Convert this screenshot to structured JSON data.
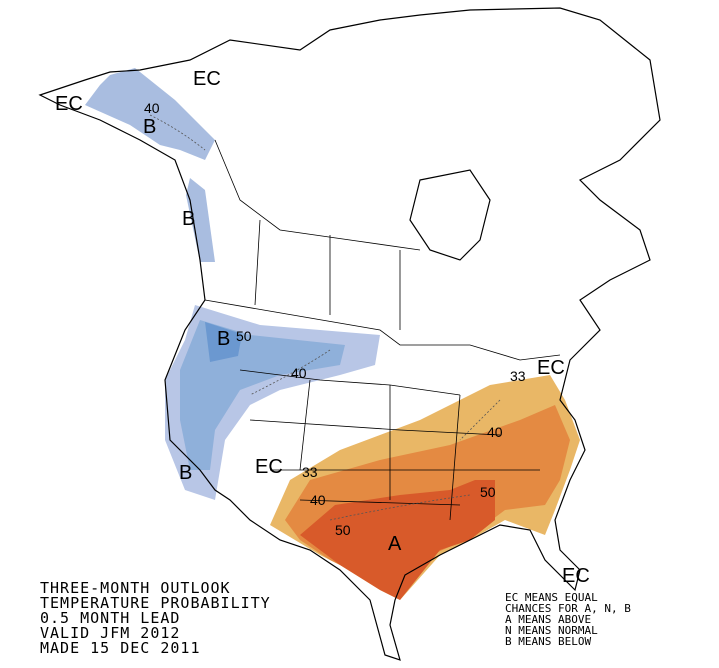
{
  "map_labels": [
    "EC",
    "EC",
    "40",
    "B",
    "B",
    "B",
    "50",
    "40",
    "EC",
    "33",
    "40",
    "EC",
    "33",
    "B",
    "40",
    "50",
    "50",
    "A",
    "EC"
  ],
  "caption_lines": [
    "THREE-MONTH OUTLOOK",
    "TEMPERATURE PROBABILITY",
    "0.5 MONTH LEAD",
    "VALID JFM 2012",
    "MADE 15 DEC 2011"
  ],
  "legend_lines": [
    "EC MEANS EQUAL",
    "CHANCES FOR A, N, B",
    "A MEANS ABOVE",
    "N MEANS NORMAL",
    "B MEANS BELOW"
  ]
}
